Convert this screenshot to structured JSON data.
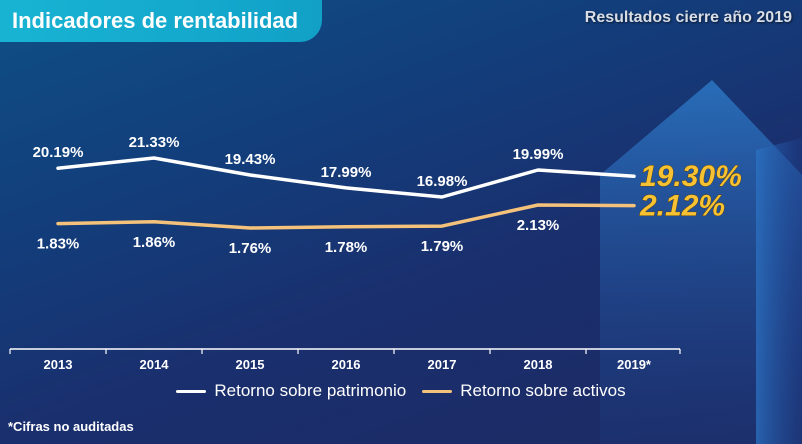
{
  "header": {
    "title": "Indicadores de rentabilidad",
    "subtitle": "Resultados cierre año 2019"
  },
  "footnote": "*Cifras no auditadas",
  "colors": {
    "roe_line": "#ffffff",
    "roa_line": "#f4c27a",
    "highlight_value": "#f6c234",
    "axis": "#ffffff",
    "tick_label": "#ffffff"
  },
  "chart_data": {
    "type": "line",
    "categories": [
      "2013",
      "2014",
      "2015",
      "2016",
      "2017",
      "2018",
      "2019*"
    ],
    "series": [
      {
        "name": "Retorno sobre patrimonio",
        "values": [
          20.19,
          21.33,
          19.43,
          17.99,
          16.98,
          19.99,
          19.3
        ],
        "labels": [
          "20.19%",
          "21.33%",
          "19.43%",
          "17.99%",
          "16.98%",
          "19.99%",
          "19.30%"
        ],
        "label_position": "above"
      },
      {
        "name": "Retorno sobre activos",
        "values": [
          1.83,
          1.86,
          1.76,
          1.78,
          1.79,
          2.13,
          2.12
        ],
        "labels": [
          "1.83%",
          "1.86%",
          "1.76%",
          "1.78%",
          "1.79%",
          "2.13%",
          "2.12%"
        ],
        "label_position": "below"
      }
    ],
    "highlight_last": true,
    "grid": false,
    "legend_position": "bottom"
  }
}
